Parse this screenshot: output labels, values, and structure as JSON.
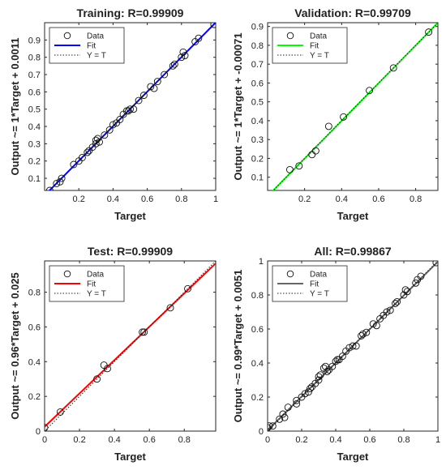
{
  "chart_data": [
    {
      "type": "scatter",
      "title": "Training: R=0.99909",
      "xlabel": "Target",
      "ylabel": "Output ~= 1*Target + 0.0011",
      "xlim": [
        0,
        1
      ],
      "ylim": [
        0.03,
        1
      ],
      "xticks": [
        "0.2",
        "0.4",
        "0.6",
        "0.8",
        "1"
      ],
      "yticks": [
        "0.1",
        "0.2",
        "0.3",
        "0.4",
        "0.5",
        "0.6",
        "0.7",
        "0.8",
        "0.9"
      ],
      "fit_color": "#0000ff",
      "fit": {
        "slope": 1,
        "intercept": 0.0011
      },
      "legend": [
        "Data",
        "Fit",
        "Y = T"
      ],
      "legend_position": "top-left",
      "points": [
        [
          0.03,
          0.03
        ],
        [
          0.07,
          0.07
        ],
        [
          0.09,
          0.08
        ],
        [
          0.1,
          0.1
        ],
        [
          0.17,
          0.18
        ],
        [
          0.2,
          0.2
        ],
        [
          0.22,
          0.22
        ],
        [
          0.25,
          0.25
        ],
        [
          0.26,
          0.26
        ],
        [
          0.28,
          0.28
        ],
        [
          0.3,
          0.3
        ],
        [
          0.3,
          0.32
        ],
        [
          0.31,
          0.33
        ],
        [
          0.32,
          0.31
        ],
        [
          0.35,
          0.35
        ],
        [
          0.38,
          0.38
        ],
        [
          0.4,
          0.41
        ],
        [
          0.42,
          0.42
        ],
        [
          0.44,
          0.44
        ],
        [
          0.46,
          0.47
        ],
        [
          0.48,
          0.49
        ],
        [
          0.49,
          0.49
        ],
        [
          0.5,
          0.5
        ],
        [
          0.52,
          0.5
        ],
        [
          0.55,
          0.55
        ],
        [
          0.58,
          0.58
        ],
        [
          0.62,
          0.63
        ],
        [
          0.64,
          0.62
        ],
        [
          0.66,
          0.66
        ],
        [
          0.7,
          0.7
        ],
        [
          0.75,
          0.75
        ],
        [
          0.76,
          0.76
        ],
        [
          0.8,
          0.8
        ],
        [
          0.81,
          0.83
        ],
        [
          0.82,
          0.81
        ],
        [
          0.88,
          0.89
        ],
        [
          0.9,
          0.91
        ],
        [
          0.99,
          0.99
        ]
      ]
    },
    {
      "type": "scatter",
      "title": "Validation: R=0.99709",
      "xlabel": "Target",
      "ylabel": "Output ~= 1*Target + -0.00071",
      "xlim": [
        0,
        0.92
      ],
      "ylim": [
        0.03,
        0.92
      ],
      "xticks": [
        "0.2",
        "0.4",
        "0.6",
        "0.8"
      ],
      "yticks": [
        "0.1",
        "0.2",
        "0.3",
        "0.4",
        "0.5",
        "0.6",
        "0.7",
        "0.8",
        "0.9"
      ],
      "fit_color": "#00ff00",
      "fit": {
        "slope": 1,
        "intercept": -0.00071
      },
      "legend": [
        "Data",
        "Fit",
        "Y = T"
      ],
      "legend_position": "top-left",
      "points": [
        [
          0.12,
          0.14
        ],
        [
          0.17,
          0.16
        ],
        [
          0.24,
          0.22
        ],
        [
          0.26,
          0.24
        ],
        [
          0.33,
          0.37
        ],
        [
          0.41,
          0.42
        ],
        [
          0.55,
          0.56
        ],
        [
          0.68,
          0.68
        ],
        [
          0.87,
          0.87
        ]
      ]
    },
    {
      "type": "scatter",
      "title": "Test: R=0.99909",
      "xlabel": "Target",
      "ylabel": "Output ~= 0.96*Target + 0.025",
      "xlim": [
        0,
        0.98
      ],
      "ylim": [
        0,
        0.98
      ],
      "xticks": [
        "0",
        "0.2",
        "0.4",
        "0.6",
        "0.8"
      ],
      "yticks": [
        "0",
        "0.2",
        "0.4",
        "0.6",
        "0.8"
      ],
      "fit_color": "#ff0000",
      "fit": {
        "slope": 0.96,
        "intercept": 0.025
      },
      "legend": [
        "Data",
        "Fit",
        "Y = T"
      ],
      "legend_position": "top-left",
      "points": [
        [
          0,
          0.02
        ],
        [
          0.09,
          0.11
        ],
        [
          0.3,
          0.3
        ],
        [
          0.34,
          0.38
        ],
        [
          0.36,
          0.36
        ],
        [
          0.56,
          0.57
        ],
        [
          0.57,
          0.57
        ],
        [
          0.72,
          0.71
        ],
        [
          0.82,
          0.82
        ]
      ]
    },
    {
      "type": "scatter",
      "title": "All: R=0.99867",
      "xlabel": "Target",
      "ylabel": "Output ~= 0.99*Target + 0.0051",
      "xlim": [
        0,
        1
      ],
      "ylim": [
        0,
        1
      ],
      "xticks": [
        "0",
        "0.2",
        "0.4",
        "0.6",
        "0.8",
        "1"
      ],
      "yticks": [
        "0",
        "0.2",
        "0.4",
        "0.6",
        "0.8",
        "1"
      ],
      "fit_color": "#666666",
      "fit": {
        "slope": 0.99,
        "intercept": 0.0051
      },
      "legend": [
        "Data",
        "Fit",
        "Y = T"
      ],
      "legend_position": "top-left",
      "points": [
        [
          0,
          0.02
        ],
        [
          0.01,
          0.03
        ],
        [
          0.03,
          0.03
        ],
        [
          0.07,
          0.07
        ],
        [
          0.09,
          0.1
        ],
        [
          0.1,
          0.08
        ],
        [
          0.12,
          0.14
        ],
        [
          0.17,
          0.18
        ],
        [
          0.17,
          0.16
        ],
        [
          0.2,
          0.2
        ],
        [
          0.22,
          0.22
        ],
        [
          0.24,
          0.23
        ],
        [
          0.25,
          0.25
        ],
        [
          0.26,
          0.26
        ],
        [
          0.28,
          0.28
        ],
        [
          0.3,
          0.3
        ],
        [
          0.3,
          0.32
        ],
        [
          0.31,
          0.33
        ],
        [
          0.33,
          0.37
        ],
        [
          0.34,
          0.38
        ],
        [
          0.35,
          0.35
        ],
        [
          0.36,
          0.36
        ],
        [
          0.38,
          0.38
        ],
        [
          0.4,
          0.41
        ],
        [
          0.41,
          0.42
        ],
        [
          0.42,
          0.42
        ],
        [
          0.44,
          0.44
        ],
        [
          0.46,
          0.47
        ],
        [
          0.48,
          0.49
        ],
        [
          0.5,
          0.5
        ],
        [
          0.52,
          0.5
        ],
        [
          0.55,
          0.56
        ],
        [
          0.56,
          0.57
        ],
        [
          0.58,
          0.58
        ],
        [
          0.62,
          0.63
        ],
        [
          0.64,
          0.62
        ],
        [
          0.66,
          0.66
        ],
        [
          0.68,
          0.68
        ],
        [
          0.7,
          0.7
        ],
        [
          0.72,
          0.71
        ],
        [
          0.75,
          0.75
        ],
        [
          0.76,
          0.76
        ],
        [
          0.8,
          0.8
        ],
        [
          0.81,
          0.83
        ],
        [
          0.82,
          0.82
        ],
        [
          0.87,
          0.87
        ],
        [
          0.88,
          0.89
        ],
        [
          0.9,
          0.91
        ],
        [
          0.99,
          0.99
        ]
      ]
    }
  ]
}
